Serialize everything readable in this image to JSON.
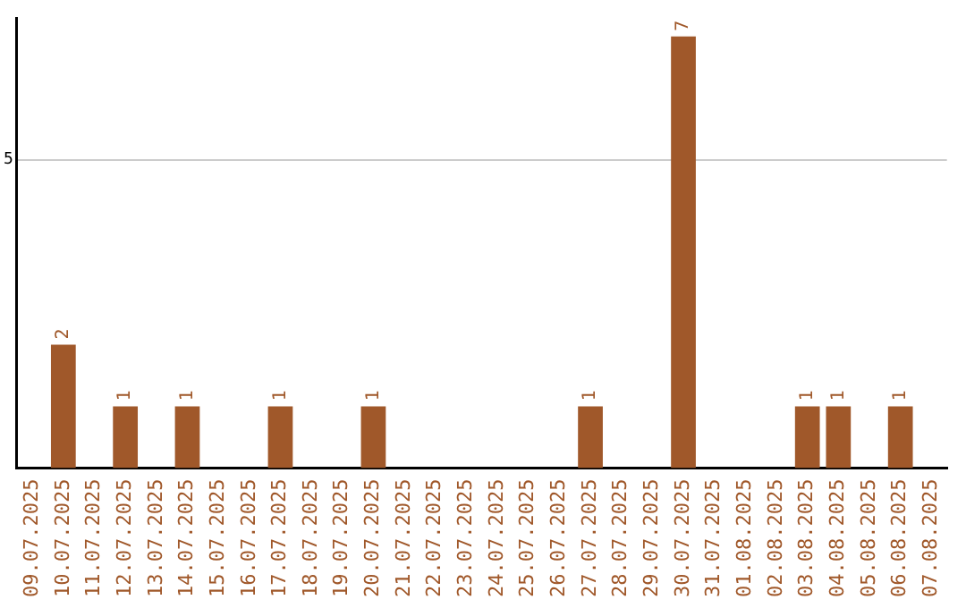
{
  "chart_data": {
    "type": "bar",
    "categories": [
      "09.07.2025",
      "10.07.2025",
      "11.07.2025",
      "12.07.2025",
      "13.07.2025",
      "14.07.2025",
      "15.07.2025",
      "16.07.2025",
      "17.07.2025",
      "18.07.2025",
      "19.07.2025",
      "20.07.2025",
      "21.07.2025",
      "22.07.2025",
      "23.07.2025",
      "24.07.2025",
      "25.07.2025",
      "26.07.2025",
      "27.07.2025",
      "28.07.2025",
      "29.07.2025",
      "30.07.2025",
      "31.07.2025",
      "01.08.2025",
      "02.08.2025",
      "03.08.2025",
      "04.08.2025",
      "05.08.2025",
      "06.08.2025",
      "07.08.2025"
    ],
    "values": [
      0,
      2,
      0,
      1,
      0,
      1,
      0,
      0,
      1,
      0,
      0,
      1,
      0,
      0,
      0,
      0,
      0,
      0,
      1,
      0,
      0,
      7,
      0,
      0,
      0,
      1,
      1,
      0,
      1,
      0
    ],
    "value_labels": [
      null,
      "2",
      null,
      "1",
      null,
      "1",
      null,
      null,
      "1",
      null,
      null,
      "1",
      null,
      null,
      null,
      null,
      null,
      null,
      "1",
      null,
      null,
      "7",
      null,
      null,
      null,
      "1",
      "1",
      null,
      "1",
      null
    ],
    "color": "#a0582a",
    "ylim": [
      0,
      7.3
    ],
    "yticks": [
      5
    ],
    "grid": "y"
  }
}
